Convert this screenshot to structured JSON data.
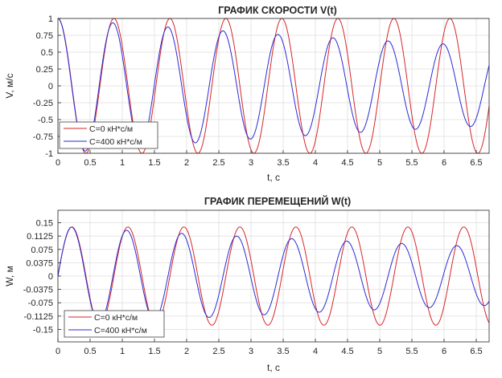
{
  "chart_data": [
    {
      "type": "line",
      "title": "ГРАФИК СКОРОСТИ V(t)",
      "xlabel": "t, c",
      "ylabel": "V, м/c",
      "xlim": [
        0,
        6.7
      ],
      "ylim": [
        -1,
        1
      ],
      "grid": true,
      "legend_position": "bottom-left",
      "xticks": [
        "0",
        "0.5",
        "1",
        "1.5",
        "2",
        "2.5",
        "3",
        "3.5",
        "4",
        "4.5",
        "5",
        "5.5",
        "6",
        "6.5"
      ],
      "yticks": [
        "1",
        "0.75",
        "0.5",
        "0.25",
        "0",
        "-0.25",
        "-0.5",
        "-0.75",
        "-1"
      ],
      "series": [
        {
          "name": "C=0 кН*с/м",
          "color": "#d62728",
          "function": "cosine",
          "amplitude": 1.0,
          "period": 0.87,
          "decay_rate": 0.0
        },
        {
          "name": "C=400 кН*с/м",
          "color": "#2b2bd6",
          "function": "cosine",
          "amplitude": 1.0,
          "period": 0.855,
          "decay_rate": 0.079
        }
      ]
    },
    {
      "type": "line",
      "title": "ГРАФИК ПЕРЕМЕЩЕНИЙ W(t)",
      "xlabel": "t, c",
      "ylabel": "W, м",
      "xlim": [
        0,
        6.7
      ],
      "ylim": [
        -0.185,
        0.185
      ],
      "grid": true,
      "legend_position": "bottom-left",
      "xticks": [
        "0",
        "0.5",
        "1",
        "1.5",
        "2",
        "2.5",
        "3",
        "3.5",
        "4",
        "4.5",
        "5",
        "5.5",
        "6",
        "6.5"
      ],
      "yticks": [
        "0.15",
        "0.1125",
        "0.075",
        "0.0375",
        "0",
        "-0.0375",
        "-0.075",
        "-0.1125",
        "-0.15"
      ],
      "series": [
        {
          "name": "C=0 кН*с/м",
          "color": "#d62728",
          "function": "sine",
          "amplitude": 0.138,
          "period": 0.87,
          "decay_rate": 0.0
        },
        {
          "name": "C=400 кН*с/м",
          "color": "#2b2bd6",
          "function": "sine",
          "amplitude": 0.14,
          "period": 0.855,
          "decay_rate": 0.079
        }
      ]
    }
  ]
}
